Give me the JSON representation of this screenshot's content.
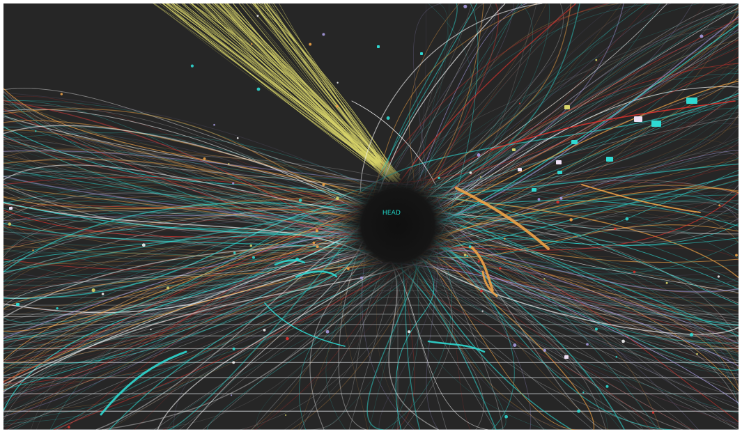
{
  "scene": {
    "head_label": "HEAD",
    "colors": {
      "background": "#262626",
      "void": "#141414",
      "grid": "#cfd3d6",
      "yellow_bundle": "#d8d46a",
      "cyan": "#2fd9d2",
      "orange": "#f0a347",
      "lavender": "#a79be0",
      "red": "#d8332e",
      "white": "#f2f2f2",
      "green": "#34c978"
    },
    "icons": [
      "data-node-marker"
    ]
  }
}
